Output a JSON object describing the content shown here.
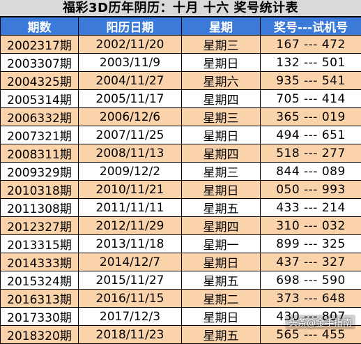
{
  "title": "福彩3D历年阴历：十月 十六 奖号统计表",
  "columns": [
    "期数",
    "阳历日期",
    "星期",
    "奖号---试机号"
  ],
  "rows": [
    {
      "issue": "2002317期",
      "date": "2002/11/20",
      "weekday": "星期三",
      "numbers": "167 --- 472"
    },
    {
      "issue": "2003307期",
      "date": "2003/11/9",
      "weekday": "星期日",
      "numbers": "132 --- 501"
    },
    {
      "issue": "2004325期",
      "date": "2004/11/27",
      "weekday": "星期六",
      "numbers": "935 --- 541"
    },
    {
      "issue": "2005314期",
      "date": "2005/11/17",
      "weekday": "星期四",
      "numbers": "705 --- 414"
    },
    {
      "issue": "2006332期",
      "date": "2006/12/6",
      "weekday": "星期三",
      "numbers": "365 --- 019"
    },
    {
      "issue": "2007321期",
      "date": "2007/11/25",
      "weekday": "星期日",
      "numbers": "494 --- 651"
    },
    {
      "issue": "2008311期",
      "date": "2008/11/13",
      "weekday": "星期四",
      "numbers": "518 --- 277"
    },
    {
      "issue": "2009329期",
      "date": "2009/12/2",
      "weekday": "星期三",
      "numbers": "844 --- 089"
    },
    {
      "issue": "2010318期",
      "date": "2010/11/21",
      "weekday": "星期日",
      "numbers": "050 --- 993"
    },
    {
      "issue": "2011308期",
      "date": "2011/11/11",
      "weekday": "星期五",
      "numbers": "433 --- 214"
    },
    {
      "issue": "2012327期",
      "date": "2012/11/29",
      "weekday": "星期四",
      "numbers": "310 --- 032"
    },
    {
      "issue": "2013315期",
      "date": "2013/11/18",
      "weekday": "星期一",
      "numbers": "899 --- 325"
    },
    {
      "issue": "2014333期",
      "date": "2014/12/7",
      "weekday": "星期日",
      "numbers": "437 --- 327"
    },
    {
      "issue": "2015324期",
      "date": "2015/11/27",
      "weekday": "星期五",
      "numbers": "698 --- 590"
    },
    {
      "issue": "2016313期",
      "date": "2016/11/15",
      "weekday": "星期二",
      "numbers": "373 --- 648"
    },
    {
      "issue": "2017330期",
      "date": "2017/12/3",
      "weekday": "星期日",
      "numbers": "430 --- 807"
    },
    {
      "issue": "2018320期",
      "date": "2018/11/23",
      "weekday": "星期五",
      "numbers": "565 --- 455"
    }
  ],
  "watermark": "头条@金手指南",
  "colors": {
    "header_bg": "#3b7ad9",
    "odd_row_bg": "#fbd3ab",
    "title_bg": "#d9d9d9"
  }
}
